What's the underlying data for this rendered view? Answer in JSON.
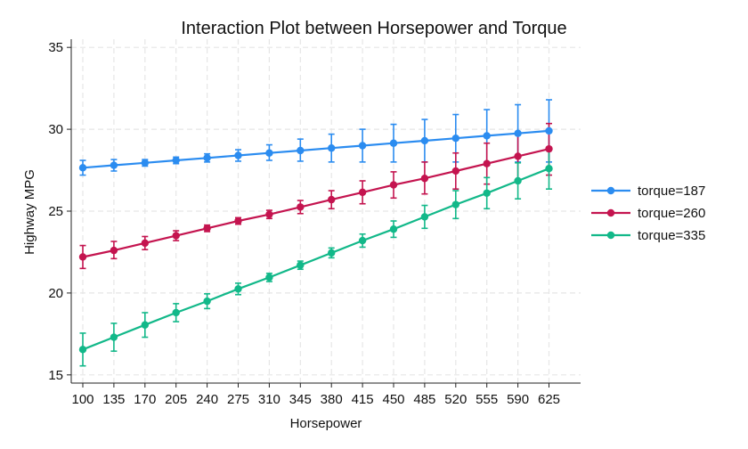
{
  "chart_data": {
    "type": "line",
    "title": "Interaction Plot between Horsepower and Torque",
    "xlabel": "Horsepower",
    "ylabel": "Highway MPG",
    "x": [
      100,
      135,
      170,
      205,
      240,
      275,
      310,
      345,
      380,
      415,
      450,
      485,
      520,
      555,
      590,
      625
    ],
    "ylim": [
      14.5,
      35.5
    ],
    "yticks": [
      15,
      20,
      25,
      30,
      35
    ],
    "grid": true,
    "legend_position": "right",
    "series": [
      {
        "name": "torque=187",
        "color": "#2b8cf0",
        "values": [
          27.65,
          27.8,
          27.95,
          28.1,
          28.25,
          28.4,
          28.55,
          28.7,
          28.85,
          29.0,
          29.15,
          29.3,
          29.45,
          29.6,
          29.75,
          29.9
        ],
        "lower": [
          27.2,
          27.45,
          27.75,
          27.9,
          28.0,
          28.05,
          28.1,
          28.05,
          28.0,
          28.0,
          28.0,
          28.0,
          28.0,
          28.0,
          28.0,
          28.0
        ],
        "upper": [
          28.1,
          28.15,
          28.15,
          28.3,
          28.5,
          28.75,
          29.05,
          29.4,
          29.7,
          30.0,
          30.3,
          30.6,
          30.9,
          31.2,
          31.5,
          31.8
        ]
      },
      {
        "name": "torque=260",
        "color": "#c4144f",
        "values": [
          22.2,
          22.6,
          23.05,
          23.5,
          23.95,
          24.4,
          24.8,
          25.25,
          25.7,
          26.15,
          26.6,
          27.0,
          27.45,
          27.9,
          28.35,
          28.8
        ],
        "lower": [
          21.5,
          22.1,
          22.65,
          23.2,
          23.75,
          24.2,
          24.55,
          24.85,
          25.15,
          25.45,
          25.8,
          26.05,
          26.35,
          26.65,
          26.9,
          27.2
        ],
        "upper": [
          22.9,
          23.15,
          23.45,
          23.8,
          24.15,
          24.6,
          25.05,
          25.65,
          26.25,
          26.85,
          27.4,
          28.0,
          28.55,
          29.15,
          29.75,
          30.35
        ]
      },
      {
        "name": "torque=335",
        "color": "#12b889",
        "values": [
          16.55,
          17.3,
          18.05,
          18.8,
          19.5,
          20.25,
          20.95,
          21.7,
          22.45,
          23.2,
          23.9,
          24.65,
          25.4,
          26.1,
          26.85,
          27.6
        ],
        "lower": [
          15.55,
          16.45,
          17.3,
          18.25,
          19.05,
          19.9,
          20.7,
          21.45,
          22.15,
          22.8,
          23.4,
          23.95,
          24.55,
          25.15,
          25.75,
          26.35
        ],
        "upper": [
          17.55,
          18.15,
          18.8,
          19.35,
          19.95,
          20.6,
          21.2,
          21.95,
          22.75,
          23.6,
          24.4,
          25.35,
          26.25,
          27.05,
          27.95,
          28.85
        ]
      }
    ]
  }
}
